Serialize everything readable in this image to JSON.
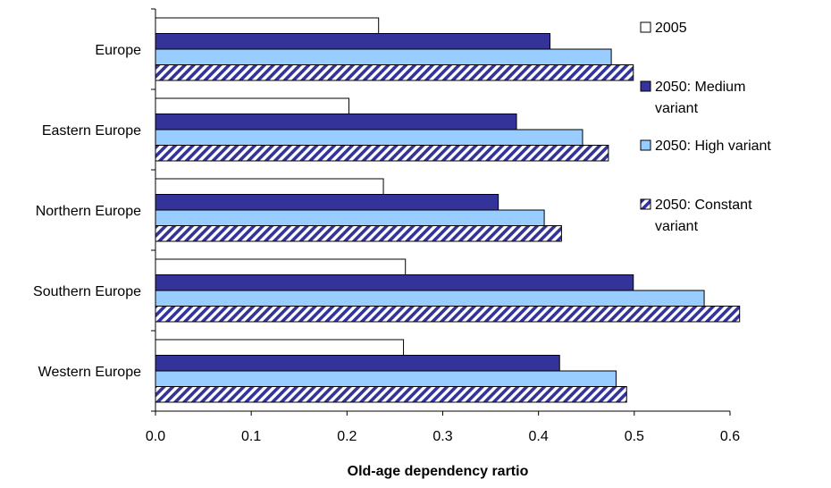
{
  "chart_data": {
    "type": "bar",
    "orientation": "horizontal",
    "title": "",
    "xlabel": "Old-age dependency rartio",
    "ylabel": "",
    "xlim": [
      0,
      0.6
    ],
    "x_ticks": [
      "0.0",
      "0.1",
      "0.2",
      "0.3",
      "0.4",
      "0.5",
      "0.6"
    ],
    "grid": false,
    "legend_position": "right",
    "categories": [
      "Europe",
      "Eastern Europe",
      "Northern Europe",
      "Southern Europe",
      "Western Europe"
    ],
    "series": [
      {
        "name": "2005",
        "legend_lines": [
          "2005"
        ],
        "fill": "#ffffff",
        "pattern": "none",
        "values": [
          0.233,
          0.202,
          0.238,
          0.261,
          0.259
        ]
      },
      {
        "name": "2050: Medium variant",
        "legend_lines": [
          "2050: Medium",
          "variant"
        ],
        "fill": "#333399",
        "pattern": "none",
        "values": [
          0.412,
          0.377,
          0.358,
          0.499,
          0.422
        ]
      },
      {
        "name": "2050: High variant",
        "legend_lines": [
          "2050: High variant"
        ],
        "fill": "#99ccff",
        "pattern": "none",
        "values": [
          0.476,
          0.446,
          0.406,
          0.573,
          0.481
        ]
      },
      {
        "name": "2050: Constant variant",
        "legend_lines": [
          "2050: Constant",
          "variant"
        ],
        "fill": "#333399",
        "pattern": "diagonal-stripes",
        "values": [
          0.499,
          0.473,
          0.424,
          0.61,
          0.492
        ]
      }
    ]
  }
}
